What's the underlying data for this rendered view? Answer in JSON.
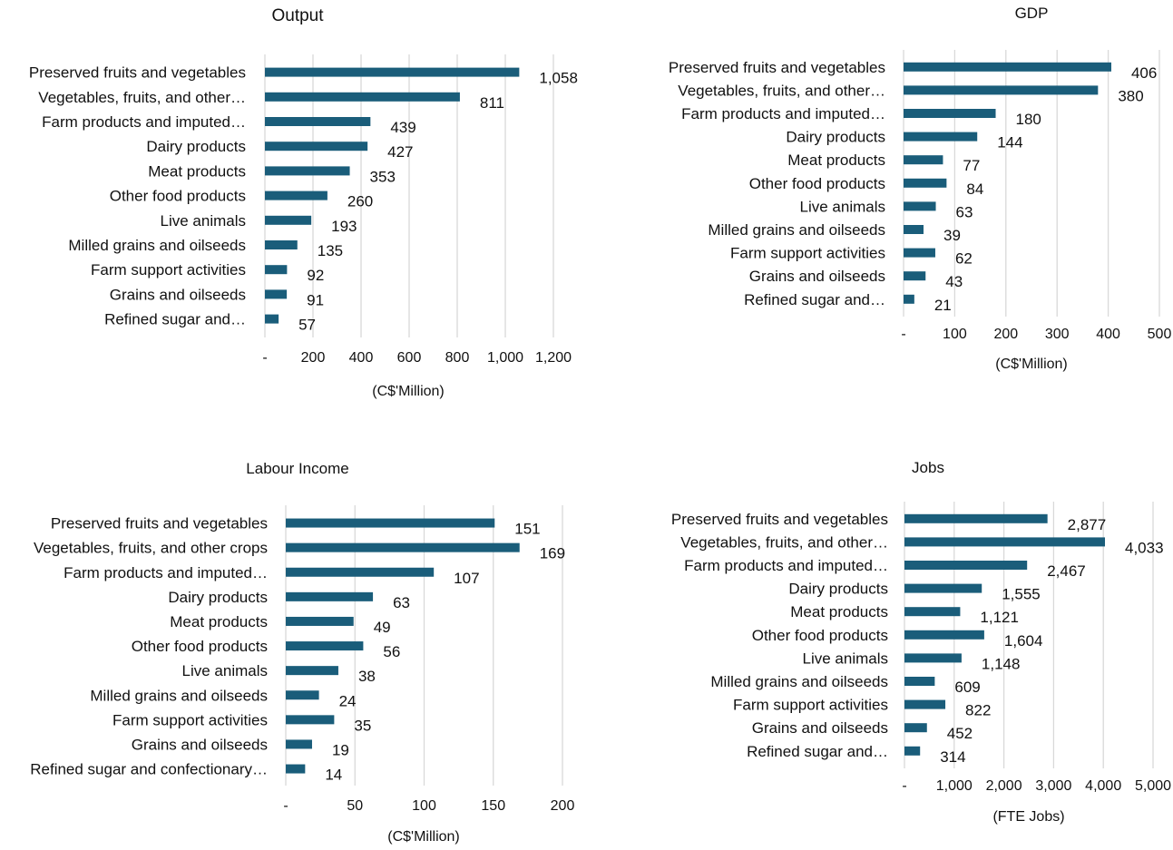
{
  "chart_data": [
    {
      "type": "bar",
      "orientation": "horizontal",
      "title": "Output",
      "xlabel": "(C$'Million)",
      "categories": [
        "Preserved fruits and vegetables",
        "Vegetables, fruits, and other…",
        "Farm products and imputed…",
        "Dairy products",
        "Meat products",
        "Other food products",
        "Live animals",
        "Milled grains and oilseeds",
        "Farm support activities",
        "Grains and oilseeds",
        "Refined sugar and…"
      ],
      "values": [
        1058,
        811,
        439,
        427,
        353,
        260,
        193,
        135,
        92,
        91,
        57
      ],
      "value_labels": [
        "1,058",
        "811",
        "439",
        "427",
        "353",
        "260",
        "193",
        "135",
        "92",
        "91",
        "57"
      ],
      "ticks": [
        0,
        200,
        400,
        600,
        800,
        1000,
        1200
      ],
      "tick_labels": [
        "-",
        "200",
        "400",
        "600",
        "800",
        "1,000",
        "1,200"
      ],
      "xlim": [
        0,
        1200
      ],
      "grid": true,
      "bar_color": "#1a5d7a"
    },
    {
      "type": "bar",
      "orientation": "horizontal",
      "title": "GDP",
      "xlabel": "(C$'Million)",
      "categories": [
        "Preserved fruits and vegetables",
        "Vegetables, fruits, and other…",
        "Farm products and imputed…",
        "Dairy products",
        "Meat products",
        "Other food products",
        "Live animals",
        "Milled grains and oilseeds",
        "Farm support activities",
        "Grains and oilseeds",
        "Refined sugar and…"
      ],
      "values": [
        406,
        380,
        180,
        144,
        77,
        84,
        63,
        39,
        62,
        43,
        21
      ],
      "value_labels": [
        "406",
        "380",
        "180",
        "144",
        "77",
        "84",
        "63",
        "39",
        "62",
        "43",
        "21"
      ],
      "ticks": [
        0,
        100,
        200,
        300,
        400,
        500
      ],
      "tick_labels": [
        "-",
        "100",
        "200",
        "300",
        "400",
        "500"
      ],
      "xlim": [
        0,
        500
      ],
      "grid": true,
      "bar_color": "#1a5d7a"
    },
    {
      "type": "bar",
      "orientation": "horizontal",
      "title": "Labour Income",
      "xlabel": "(C$'Million)",
      "categories": [
        "Preserved fruits and vegetables",
        "Vegetables, fruits, and other crops",
        "Farm products and imputed…",
        "Dairy products",
        "Meat products",
        "Other food products",
        "Live animals",
        "Milled grains and oilseeds",
        "Farm support activities",
        "Grains and oilseeds",
        "Refined sugar and confectionary…"
      ],
      "values": [
        151,
        169,
        107,
        63,
        49,
        56,
        38,
        24,
        35,
        19,
        14
      ],
      "value_labels": [
        "151",
        "169",
        "107",
        "63",
        "49",
        "56",
        "38",
        "24",
        "35",
        "19",
        "14"
      ],
      "ticks": [
        0,
        50,
        100,
        150,
        200
      ],
      "tick_labels": [
        "-",
        "50",
        "100",
        "150",
        "200"
      ],
      "xlim": [
        0,
        200
      ],
      "grid": true,
      "bar_color": "#1a5d7a"
    },
    {
      "type": "bar",
      "orientation": "horizontal",
      "title": "Jobs",
      "xlabel": "(FTE Jobs)",
      "categories": [
        "Preserved fruits and vegetables",
        "Vegetables, fruits, and other…",
        "Farm products and imputed…",
        "Dairy products",
        "Meat products",
        "Other food products",
        "Live animals",
        "Milled grains and oilseeds",
        "Farm support activities",
        "Grains and oilseeds",
        "Refined sugar and…"
      ],
      "values": [
        2877,
        4033,
        2467,
        1555,
        1121,
        1604,
        1148,
        609,
        822,
        452,
        314
      ],
      "value_labels": [
        "2,877",
        "4,033",
        "2,467",
        "1,555",
        "1,121",
        "1,604",
        "1,148",
        "609",
        "822",
        "452",
        "314"
      ],
      "ticks": [
        0,
        1000,
        2000,
        3000,
        4000,
        5000
      ],
      "tick_labels": [
        "-",
        "1,000",
        "2,000",
        "3,000",
        "4,000",
        "5,000"
      ],
      "xlim": [
        0,
        5000
      ],
      "grid": true,
      "bar_color": "#1a5d7a"
    }
  ]
}
